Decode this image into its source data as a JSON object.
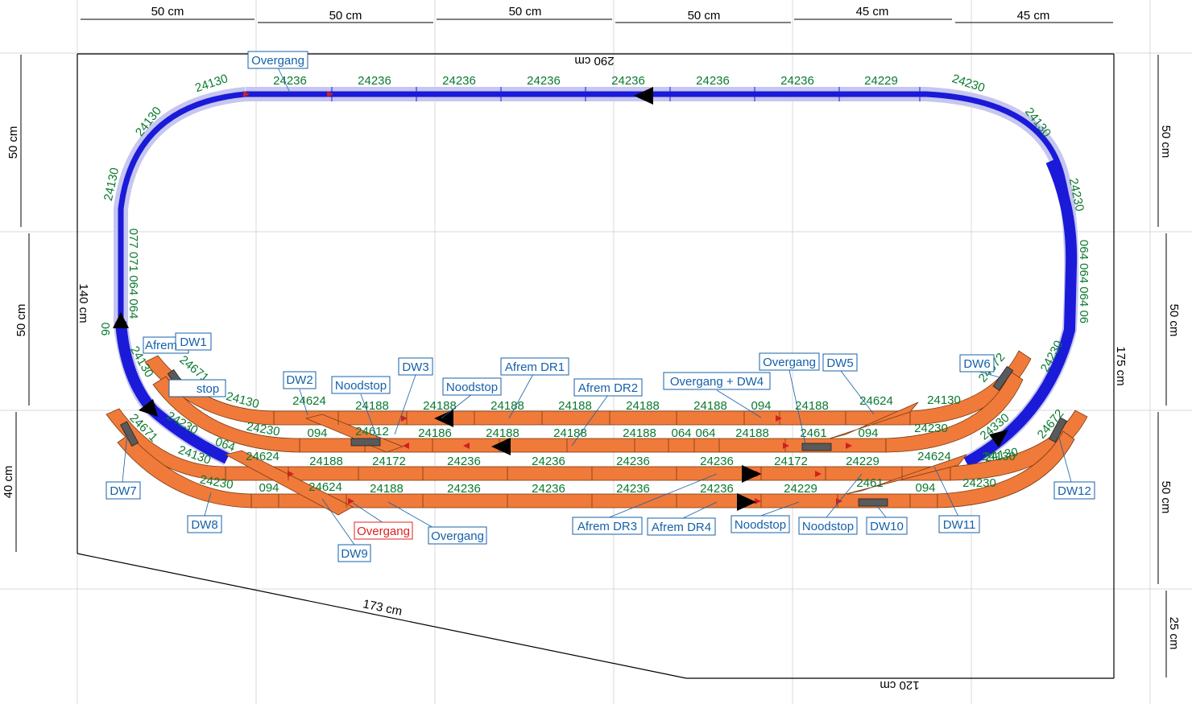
{
  "colors": {
    "background": "#ffffff",
    "grid": "#d8d8d8",
    "loop_track": "#1a1ad8",
    "loop_halo": "#c6c6f0",
    "station_track": "#f07a3a",
    "track_edge": "#7a3a12",
    "part_number": "#0a7a30",
    "label": "#1560a8",
    "label_alert": "#e02020",
    "signal": "#d02020"
  },
  "icons": {
    "direction": "black-triangle-arrow",
    "signal": "red-triangle-signal",
    "decoupler": "grey-bar-uncoupler"
  },
  "dimensions": {
    "top": [
      "50 cm",
      "50 cm",
      "50 cm",
      "50 cm",
      "45 cm",
      "45 cm"
    ],
    "left": [
      "50 cm",
      "50 cm",
      "40 cm"
    ],
    "right": [
      "50 cm",
      "50 cm",
      "50 cm",
      "25 cm"
    ],
    "board_top": "290 cm",
    "board_left": "140 cm",
    "board_right": "175 cm",
    "board_bottom_right": "120 cm",
    "board_bottom_diag": "173 cm"
  },
  "part_numbers": {
    "top_straights": [
      "24236",
      "24236",
      "24236",
      "24236",
      "24236",
      "24236",
      "24236",
      "24229"
    ],
    "left_curves": [
      "24130",
      "24130",
      "24130"
    ],
    "right_curves": [
      "24230",
      "24130",
      "24230"
    ],
    "left_vertical": "077 071 064 064",
    "left_06": "06",
    "right_vertical": "064 064 064 06",
    "lower_left": [
      "24130",
      "24671",
      "24130",
      "24230",
      "24671",
      "24230",
      "24130",
      "064",
      "24230"
    ],
    "lower_right": [
      "24230",
      "24330",
      "24672",
      "24672",
      "24130"
    ],
    "row1": [
      "24624",
      "24188",
      "24188",
      "24188",
      "24188",
      "24188",
      "24188",
      "094",
      "24188",
      "24624",
      "24130"
    ],
    "row2": [
      "094",
      "24612",
      "24186",
      "24188",
      "24188",
      "24188",
      "064",
      "064",
      "24188",
      "2461",
      "094",
      "24230"
    ],
    "row3": [
      "24624",
      "24188",
      "24172",
      "24236",
      "24236",
      "24236",
      "24236",
      "24172",
      "24229",
      "24624",
      "24130"
    ],
    "row4": [
      "094",
      "24624",
      "24188",
      "24236",
      "24236",
      "24236",
      "24236",
      "24229",
      "2461",
      "094",
      "24230"
    ]
  },
  "labels": {
    "overgang_top": "Overgang",
    "afrem_left": "Afrem",
    "dw1": "DW1",
    "stop_left": "stop",
    "dw2": "DW2",
    "noodstop_1": "Noodstop",
    "dw3": "DW3",
    "noodstop_2": "Noodstop",
    "afrem_dr1": "Afrem DR1",
    "afrem_dr2": "Afrem DR2",
    "overgang_dw4": "Overgang + DW4",
    "overgang_mid": "Overgang",
    "dw5": "DW5",
    "dw6": "DW6",
    "dw7": "DW7",
    "dw8": "DW8",
    "overgang_red": "Overgang",
    "overgang_bottom": "Overgang",
    "dw9": "DW9",
    "afrem_dr3": "Afrem DR3",
    "afrem_dr4": "Afrem DR4",
    "noodstop_3": "Noodstop",
    "noodstop_4": "Noodstop",
    "dw10": "DW10",
    "dw11": "DW11",
    "dw12": "DW12"
  }
}
